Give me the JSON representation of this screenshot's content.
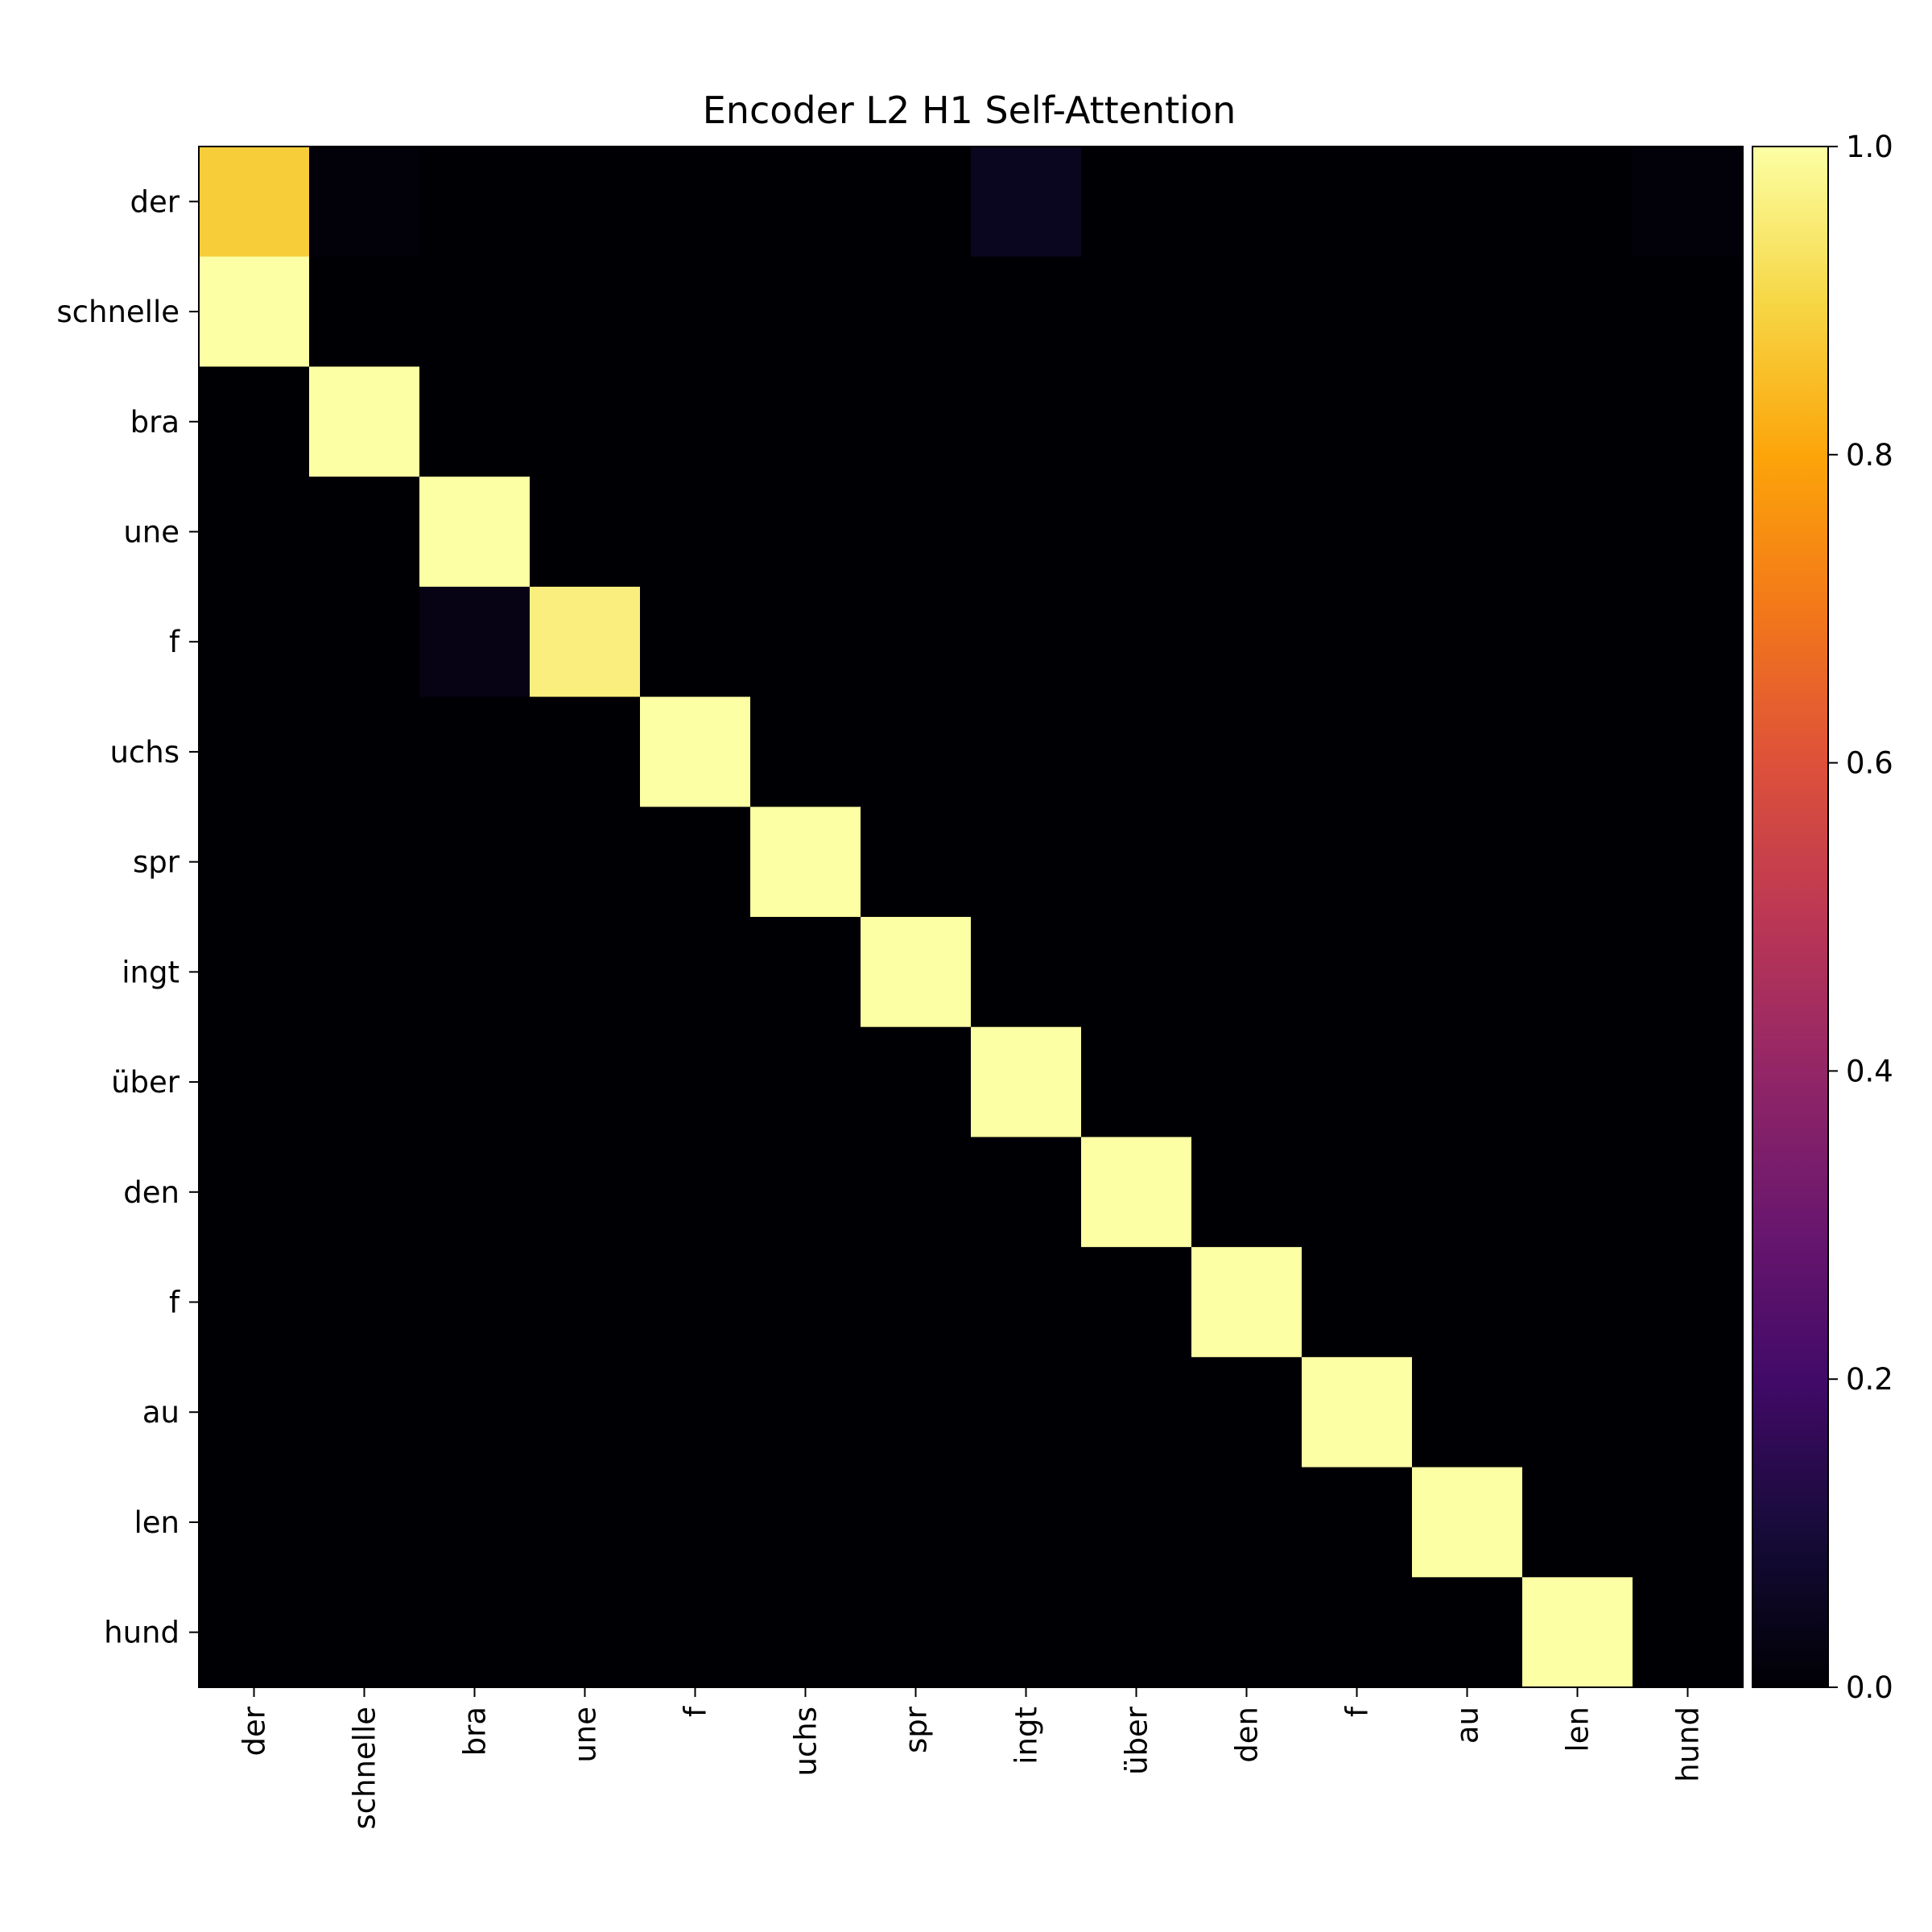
{
  "chart_data": {
    "type": "heatmap",
    "title": "Encoder L2 H1 Self-Attention",
    "xlabel": "",
    "ylabel": "",
    "x_tokens": [
      "der",
      "schnelle",
      "bra",
      "une",
      "f",
      "uchs",
      "spr",
      "ingt",
      "über",
      "den",
      "f",
      "au",
      "len",
      "hund"
    ],
    "y_tokens": [
      "der",
      "schnelle",
      "bra",
      "une",
      "f",
      "uchs",
      "spr",
      "ingt",
      "über",
      "den",
      "f",
      "au",
      "len",
      "hund"
    ],
    "colormap": "inferno",
    "vmin": 0.0,
    "vmax": 1.0,
    "colorbar_ticks": [
      "0.0",
      "0.2",
      "0.4",
      "0.6",
      "0.8",
      "1.0"
    ],
    "colorbar_tick_values": [
      0.0,
      0.2,
      0.4,
      0.6,
      0.8,
      1.0
    ],
    "values": [
      [
        0.88,
        0.01,
        0.0,
        0.0,
        0.0,
        0.0,
        0.0,
        0.05,
        0.0,
        0.0,
        0.0,
        0.0,
        0.0,
        0.01
      ],
      [
        1.0,
        0.0,
        0.0,
        0.0,
        0.0,
        0.0,
        0.0,
        0.0,
        0.0,
        0.0,
        0.0,
        0.0,
        0.0,
        0.0
      ],
      [
        0.0,
        1.0,
        0.0,
        0.0,
        0.0,
        0.0,
        0.0,
        0.0,
        0.0,
        0.0,
        0.0,
        0.0,
        0.0,
        0.0
      ],
      [
        0.0,
        0.0,
        1.0,
        0.0,
        0.0,
        0.0,
        0.0,
        0.0,
        0.0,
        0.0,
        0.0,
        0.0,
        0.0,
        0.0
      ],
      [
        0.0,
        0.0,
        0.03,
        0.96,
        0.0,
        0.0,
        0.0,
        0.0,
        0.0,
        0.0,
        0.0,
        0.0,
        0.0,
        0.0
      ],
      [
        0.0,
        0.0,
        0.0,
        0.0,
        1.0,
        0.0,
        0.0,
        0.0,
        0.0,
        0.0,
        0.0,
        0.0,
        0.0,
        0.0
      ],
      [
        0.0,
        0.0,
        0.0,
        0.0,
        0.0,
        1.0,
        0.0,
        0.0,
        0.0,
        0.0,
        0.0,
        0.0,
        0.0,
        0.0
      ],
      [
        0.0,
        0.0,
        0.0,
        0.0,
        0.0,
        0.0,
        1.0,
        0.0,
        0.0,
        0.0,
        0.0,
        0.0,
        0.0,
        0.0
      ],
      [
        0.0,
        0.0,
        0.0,
        0.0,
        0.0,
        0.0,
        0.0,
        1.0,
        0.0,
        0.0,
        0.0,
        0.0,
        0.0,
        0.0
      ],
      [
        0.0,
        0.0,
        0.0,
        0.0,
        0.0,
        0.0,
        0.0,
        0.0,
        1.0,
        0.0,
        0.0,
        0.0,
        0.0,
        0.0
      ],
      [
        0.0,
        0.0,
        0.0,
        0.0,
        0.0,
        0.0,
        0.0,
        0.0,
        0.0,
        1.0,
        0.0,
        0.0,
        0.0,
        0.0
      ],
      [
        0.0,
        0.0,
        0.0,
        0.0,
        0.0,
        0.0,
        0.0,
        0.0,
        0.0,
        0.0,
        1.0,
        0.0,
        0.0,
        0.0
      ],
      [
        0.0,
        0.0,
        0.0,
        0.0,
        0.0,
        0.0,
        0.0,
        0.0,
        0.0,
        0.0,
        0.0,
        1.0,
        0.0,
        0.0
      ],
      [
        0.0,
        0.0,
        0.0,
        0.0,
        0.0,
        0.0,
        0.0,
        0.0,
        0.0,
        0.0,
        0.0,
        0.0,
        1.0,
        0.0
      ]
    ]
  }
}
